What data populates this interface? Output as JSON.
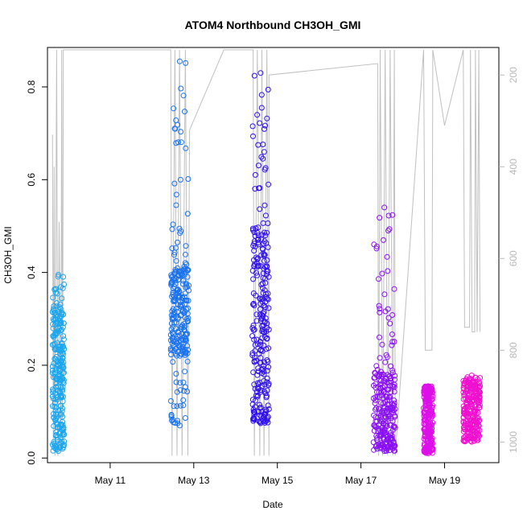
{
  "chart_data": {
    "type": "scatter",
    "title": "ATOM4 Northbound CH3OH_GMI",
    "xlabel": "Date",
    "ylabel": "CH3OH_GMI",
    "x_ticks": [
      "May 11",
      "May 13",
      "May 15",
      "May 17",
      "May 19"
    ],
    "x_tick_days": [
      11,
      13,
      15,
      17,
      19
    ],
    "xlim_days": [
      9.5,
      20.3
    ],
    "ylim": [
      -0.01,
      0.885
    ],
    "y_ticks": [
      "0.0",
      "0.2",
      "0.4",
      "0.6",
      "0.8"
    ],
    "y_tick_values": [
      0.0,
      0.2,
      0.4,
      0.6,
      0.8
    ],
    "right_axis": {
      "description": "pressure (grey line), inverted",
      "ticks": [
        "200",
        "400",
        "600",
        "800",
        "1000"
      ],
      "tick_values": [
        200,
        400,
        600,
        800,
        1000
      ],
      "lim": [
        1045,
        140
      ]
    },
    "grid": false,
    "legend": "none",
    "series": [
      {
        "color": "#1ca6ee",
        "day_range": [
          9.62,
          9.9
        ],
        "y_min": 0.015,
        "y_max": 0.395,
        "core": [
          0.06,
          0.32
        ]
      },
      {
        "color": "#1a72ee",
        "day_range": [
          12.45,
          12.88
        ],
        "y_min": 0.07,
        "y_max": 0.855,
        "core": [
          0.22,
          0.41
        ]
      },
      {
        "color": "#2f10ee",
        "day_range": [
          14.4,
          14.8
        ],
        "y_min": 0.075,
        "y_max": 0.83,
        "core": [
          0.1,
          0.48
        ]
      },
      {
        "color": "#8a10f4",
        "day_range": [
          17.3,
          17.82
        ],
        "y_min": 0.015,
        "y_max": 0.54,
        "core": [
          0.03,
          0.18
        ]
      },
      {
        "color": "#dd10e8",
        "day_range": [
          18.5,
          18.72
        ],
        "y_min": 0.01,
        "y_max": 0.155,
        "core": [
          0.02,
          0.15
        ]
      },
      {
        "color": "#f010d0",
        "day_range": [
          19.45,
          19.85
        ],
        "y_min": 0.035,
        "y_max": 0.178,
        "core": [
          0.05,
          0.16
        ]
      }
    ],
    "pressure_line": {
      "color": "#c0c0c0",
      "points": [
        [
          9.62,
          330
        ],
        [
          9.64,
          1010
        ],
        [
          9.66,
          400
        ],
        [
          9.68,
          1030
        ],
        [
          9.72,
          145
        ],
        [
          9.75,
          1030
        ],
        [
          9.78,
          520
        ],
        [
          9.82,
          1020
        ],
        [
          9.84,
          145
        ],
        [
          9.86,
          1020
        ],
        [
          9.88,
          145
        ],
        [
          12.45,
          145
        ],
        [
          12.48,
          1030
        ],
        [
          12.55,
          145
        ],
        [
          12.6,
          1030
        ],
        [
          12.66,
          145
        ],
        [
          12.72,
          1030
        ],
        [
          12.8,
          145
        ],
        [
          12.86,
          1030
        ],
        [
          12.9,
          320
        ],
        [
          13.72,
          145
        ],
        [
          14.42,
          145
        ],
        [
          14.45,
          1030
        ],
        [
          14.52,
          145
        ],
        [
          14.58,
          1030
        ],
        [
          14.63,
          145
        ],
        [
          14.68,
          1030
        ],
        [
          14.75,
          145
        ],
        [
          14.8,
          1030
        ],
        [
          14.8,
          200
        ],
        [
          17.4,
          175
        ],
        [
          17.42,
          1030
        ],
        [
          17.46,
          145
        ],
        [
          17.52,
          1030
        ],
        [
          17.58,
          145
        ],
        [
          17.64,
          1030
        ],
        [
          17.7,
          145
        ],
        [
          17.76,
          1030
        ],
        [
          17.8,
          145
        ],
        [
          17.82,
          1030
        ],
        [
          18.5,
          145
        ],
        [
          18.54,
          800
        ],
        [
          18.7,
          800
        ],
        [
          18.72,
          145
        ],
        [
          19.0,
          310
        ],
        [
          19.45,
          145
        ],
        [
          19.48,
          750
        ],
        [
          19.6,
          750
        ],
        [
          19.62,
          145
        ],
        [
          19.66,
          760
        ],
        [
          19.72,
          760
        ],
        [
          19.74,
          145
        ],
        [
          19.78,
          760
        ],
        [
          19.82,
          145
        ],
        [
          19.85,
          760
        ]
      ]
    }
  }
}
